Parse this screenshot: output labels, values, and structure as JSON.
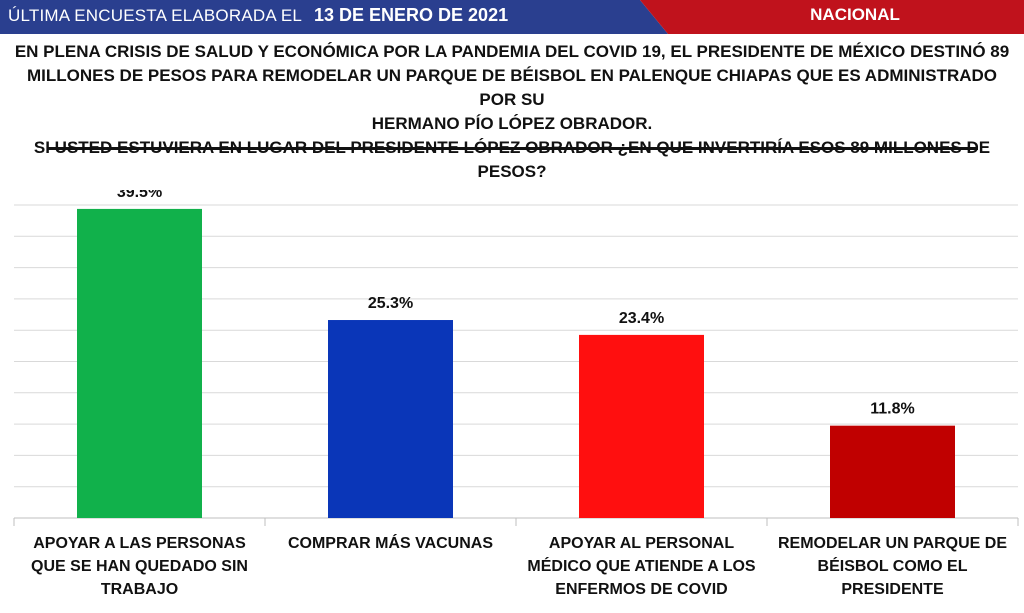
{
  "header": {
    "survey_label": "ÚLTIMA ENCUESTA ELABORADA EL",
    "survey_date": "13 DE ENERO DE 2021",
    "scope": "NACIONAL",
    "colors": {
      "left": "#2a3f8f",
      "right": "#c0121c"
    }
  },
  "question": {
    "lines": [
      "EN PLENA CRISIS DE SALUD Y ECONÓMICA POR LA PANDEMIA DEL COVID 19, EL PRESIDENTE DE MÉXICO DESTINÓ 89",
      "MILLONES DE PESOS PARA REMODELAR UN PARQUE DE BÉISBOL EN PALENQUE CHIAPAS QUE ES ADMINISTRADO POR SU",
      "HERMANO PÍO LÓPEZ OBRADOR.",
      "SI USTED ESTUVIERA EN LUGAR DEL PRESIDENTE LÓPEZ OBRADOR ¿EN QUE INVERTIRÍA ESOS 89 MILLONES DE PESOS?"
    ]
  },
  "chart_data": {
    "type": "bar",
    "categories": [
      [
        "APOYAR A LAS PERSONAS",
        "QUE SE HAN QUEDADO SIN",
        "TRABAJO"
      ],
      [
        "COMPRAR MÁS VACUNAS"
      ],
      [
        "APOYAR AL PERSONAL",
        "MÉDICO QUE ATIENDE A LOS",
        "ENFERMOS DE COVID"
      ],
      [
        "REMODELAR UN PARQUE DE",
        "BÉISBOL COMO EL",
        "PRESIDENTE"
      ]
    ],
    "values": [
      39.5,
      25.3,
      23.4,
      11.8
    ],
    "value_labels": [
      "39.5%",
      "25.3%",
      "23.4%",
      "11.8%"
    ],
    "colors": [
      "#11b14b",
      "#0a36b8",
      "#ff0f0f",
      "#c00000"
    ],
    "ylim": [
      0,
      40
    ],
    "grid": true,
    "title": "",
    "xlabel": "",
    "ylabel": ""
  }
}
